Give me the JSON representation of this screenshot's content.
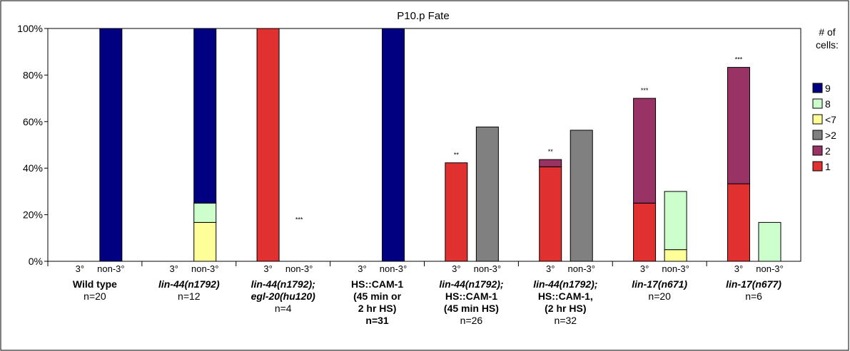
{
  "chart_data": {
    "type": "bar",
    "stacked": true,
    "title": "P10.p Fate",
    "ylim": [
      0,
      100
    ],
    "yticks": [
      "0%",
      "20%",
      "40%",
      "60%",
      "80%",
      "100%"
    ],
    "legend": {
      "title_lines": [
        "# of",
        "cells:"
      ],
      "placement": "right",
      "items": [
        {
          "key": "9",
          "label": "9",
          "color": "#000080"
        },
        {
          "key": "8",
          "label": "8",
          "color": "#ccffcc"
        },
        {
          "key": "lt7",
          "label": "<7",
          "color": "#ffff99"
        },
        {
          "key": "gt2",
          "label": ">2",
          "color": "#808080"
        },
        {
          "key": "2",
          "label": "2",
          "color": "#993366"
        },
        {
          "key": "1",
          "label": "1",
          "color": "#e03030"
        }
      ]
    },
    "groups": [
      {
        "label_lines": [
          "Wild type",
          "n=20"
        ],
        "bold_lines": 1,
        "italic_lines": 0,
        "bars": [
          {
            "label": "3°",
            "segments": []
          },
          {
            "label": "non-3°",
            "segments": [
              {
                "key": "9",
                "value": 100
              }
            ]
          }
        ]
      },
      {
        "label_lines": [
          "lin-44(n1792)",
          "n=12"
        ],
        "bold_lines": 1,
        "italic_lines": 1,
        "bars": [
          {
            "label": "3°",
            "segments": []
          },
          {
            "label": "non-3°",
            "segments": [
              {
                "key": "lt7",
                "value": 16.7
              },
              {
                "key": "8",
                "value": 8.3
              },
              {
                "key": "9",
                "value": 75
              }
            ]
          }
        ]
      },
      {
        "label_lines": [
          "lin-44(n1792);",
          "egl-20(hu120)",
          "n=4"
        ],
        "bold_lines": 2,
        "italic_lines": 2,
        "annotation": "***",
        "bars": [
          {
            "label": "3°",
            "segments": [
              {
                "key": "1",
                "value": 100
              }
            ]
          },
          {
            "label": "non-3°",
            "segments": []
          }
        ]
      },
      {
        "label_lines": [
          "HS::CAM-1",
          "(45 min or",
          "2 hr HS)",
          "n=31"
        ],
        "bold_lines": 4,
        "italic_lines": 0,
        "bars": [
          {
            "label": "3°",
            "segments": []
          },
          {
            "label": "non-3°",
            "segments": [
              {
                "key": "9",
                "value": 100
              }
            ]
          }
        ]
      },
      {
        "label_lines": [
          "lin-44(n1792);",
          "HS::CAM-1",
          "(45 min HS)",
          "n=26"
        ],
        "bold_lines": 3,
        "italic_lines": 1,
        "bars": [
          {
            "label": "3°",
            "annotation": "**",
            "segments": [
              {
                "key": "1",
                "value": 42.3
              }
            ]
          },
          {
            "label": "non-3°",
            "segments": [
              {
                "key": "gt2",
                "value": 57.7
              }
            ]
          }
        ]
      },
      {
        "label_lines": [
          "lin-44(n1792);",
          "HS::CAM-1,",
          "(2 hr HS)",
          "n=32"
        ],
        "bold_lines": 3,
        "italic_lines": 1,
        "bars": [
          {
            "label": "3°",
            "annotation": "**",
            "segments": [
              {
                "key": "1",
                "value": 40.6
              },
              {
                "key": "2",
                "value": 3.1
              }
            ]
          },
          {
            "label": "non-3°",
            "segments": [
              {
                "key": "gt2",
                "value": 56.3
              }
            ]
          }
        ]
      },
      {
        "label_lines": [
          "lin-17(n671)",
          "n=20"
        ],
        "bold_lines": 1,
        "italic_lines": 1,
        "bars": [
          {
            "label": "3°",
            "annotation": "***",
            "segments": [
              {
                "key": "1",
                "value": 25
              },
              {
                "key": "2",
                "value": 45
              }
            ]
          },
          {
            "label": "non-3°",
            "segments": [
              {
                "key": "lt7",
                "value": 5
              },
              {
                "key": "8",
                "value": 25
              }
            ]
          }
        ]
      },
      {
        "label_lines": [
          "lin-17(n677)",
          "n=6"
        ],
        "bold_lines": 1,
        "italic_lines": 1,
        "bars": [
          {
            "label": "3°",
            "annotation": "***",
            "segments": [
              {
                "key": "1",
                "value": 33.3
              },
              {
                "key": "2",
                "value": 50
              }
            ]
          },
          {
            "label": "non-3°",
            "segments": [
              {
                "key": "8",
                "value": 16.7
              }
            ]
          }
        ]
      }
    ]
  }
}
